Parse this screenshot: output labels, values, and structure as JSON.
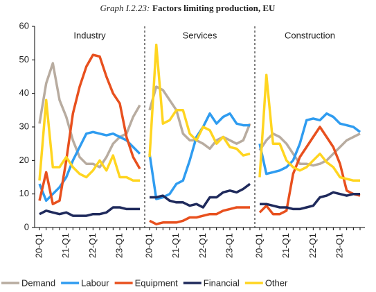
{
  "title_label": "Graph I.2.23:",
  "title": "Factors limiting production, EU",
  "chart_data": [
    {
      "type": "line",
      "title": "Industry",
      "categories": [
        "20-Q1",
        null,
        null,
        null,
        "21-Q1",
        null,
        null,
        null,
        "22-Q1",
        null,
        null,
        null,
        "23-Q1",
        null,
        null,
        null
      ],
      "ylim": [
        0,
        60
      ],
      "yticks": [
        0,
        10,
        20,
        30,
        40,
        50,
        60
      ],
      "series": [
        {
          "name": "Demand",
          "color": "#b8aca0",
          "values": [
            31,
            43,
            49,
            38,
            33,
            26,
            21,
            19,
            19,
            18,
            21,
            25,
            27,
            28,
            33,
            36.5
          ]
        },
        {
          "name": "Labour",
          "color": "#2f9cf0",
          "values": [
            13,
            8,
            10,
            12,
            15,
            20,
            24,
            28,
            28.5,
            28,
            27.5,
            28,
            27,
            26,
            24,
            22
          ]
        },
        {
          "name": "Equipment",
          "color": "#e8501e",
          "values": [
            8,
            16.5,
            7,
            8,
            20,
            34,
            42,
            48,
            51.5,
            51,
            45,
            40,
            37,
            27,
            21,
            17.5
          ]
        },
        {
          "name": "Financial",
          "color": "#1f2a5c",
          "values": [
            4,
            5,
            4.5,
            4,
            4.5,
            3.5,
            3.5,
            3.5,
            4,
            4,
            4.5,
            6,
            6,
            5.5,
            5.5,
            5.5
          ]
        },
        {
          "name": "Other",
          "color": "#ffd520",
          "values": [
            14,
            38,
            18,
            18,
            21,
            18,
            16,
            15,
            17,
            20,
            17,
            21.5,
            15,
            15,
            14,
            14
          ]
        }
      ]
    },
    {
      "type": "line",
      "title": "Services",
      "categories": [
        "20-Q1",
        null,
        null,
        null,
        "21-Q1",
        null,
        null,
        null,
        "22-Q1",
        null,
        null,
        null,
        "23-Q1",
        null,
        null,
        null
      ],
      "ylim": [
        0,
        60
      ],
      "series": [
        {
          "name": "Demand",
          "color": "#b8aca0",
          "values": [
            35,
            42,
            41,
            38,
            35,
            28,
            26,
            26,
            25,
            23.5,
            26,
            27,
            26,
            25,
            26,
            31
          ]
        },
        {
          "name": "Labour",
          "color": "#2f9cf0",
          "values": [
            22,
            8.5,
            9,
            10,
            13,
            14,
            20,
            27,
            30,
            34,
            31,
            33,
            34,
            31,
            30.5,
            30.5
          ]
        },
        {
          "name": "Equipment",
          "color": "#e8501e",
          "values": [
            2,
            1,
            1.5,
            1.5,
            1.5,
            2,
            3,
            3,
            3.5,
            4,
            4,
            5,
            5.5,
            6,
            6,
            6
          ]
        },
        {
          "name": "Financial",
          "color": "#1f2a5c",
          "values": [
            9,
            9,
            9.5,
            8,
            7.5,
            7.5,
            6.5,
            7,
            6,
            9,
            9,
            10.5,
            11,
            10.5,
            11.5,
            13
          ]
        },
        {
          "name": "Other",
          "color": "#ffd520",
          "values": [
            21,
            54.5,
            31,
            32,
            35,
            35,
            28,
            26,
            30,
            29,
            25,
            27,
            24,
            23.5,
            21.5,
            22
          ]
        }
      ]
    },
    {
      "type": "line",
      "title": "Construction",
      "categories": [
        "20-Q1",
        null,
        null,
        null,
        "21-Q1",
        null,
        null,
        null,
        "22-Q1",
        null,
        null,
        null,
        "23-Q1",
        null,
        null,
        null
      ],
      "ylim": [
        0,
        60
      ],
      "series": [
        {
          "name": "Demand",
          "color": "#b8aca0",
          "values": [
            23,
            26,
            28,
            27,
            25,
            22,
            19,
            19,
            18.5,
            19,
            20,
            22,
            24,
            26,
            27,
            28
          ]
        },
        {
          "name": "Labour",
          "color": "#2f9cf0",
          "values": [
            25,
            16,
            16.5,
            17,
            18,
            20,
            25,
            32,
            32.5,
            32,
            34,
            33,
            31,
            30.5,
            30,
            28.5
          ]
        },
        {
          "name": "Equipment",
          "color": "#e8501e",
          "values": [
            4.5,
            6.5,
            4,
            4,
            5,
            16,
            21,
            24,
            27,
            30,
            27,
            24,
            19,
            11,
            10,
            9.5
          ]
        },
        {
          "name": "Financial",
          "color": "#1f2a5c",
          "values": [
            7,
            7,
            6.5,
            6,
            6,
            5.5,
            5.5,
            6,
            6.5,
            9,
            9.5,
            10.5,
            10,
            9.5,
            10,
            10
          ]
        },
        {
          "name": "Other",
          "color": "#ffd520",
          "values": [
            15,
            45.5,
            25,
            25,
            20,
            18,
            17,
            18,
            20,
            22,
            19.5,
            18,
            15,
            14.5,
            14,
            14
          ]
        }
      ]
    }
  ]
}
